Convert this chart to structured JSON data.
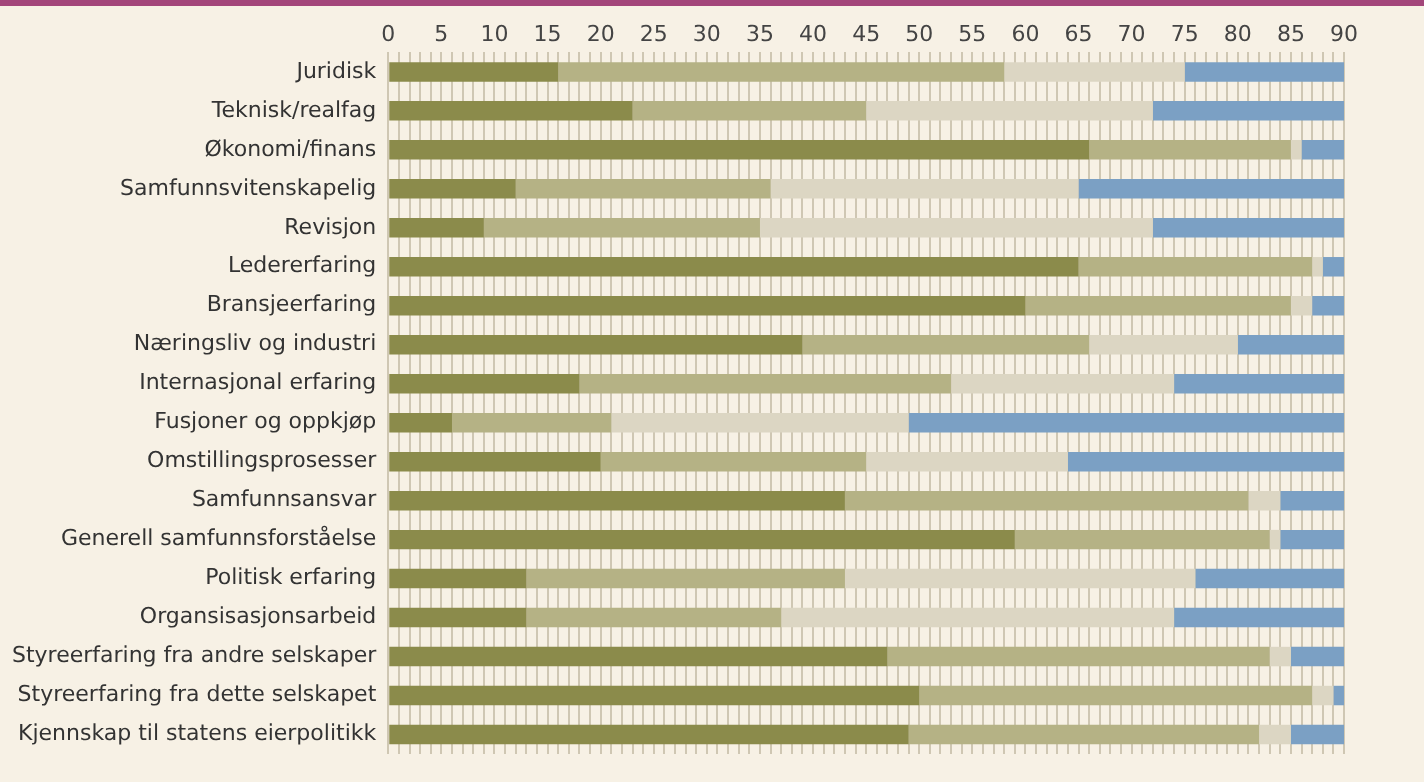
{
  "chart_data": {
    "type": "bar",
    "orientation": "horizontal",
    "stacked": true,
    "grid": "x",
    "legend": false,
    "categories": [
      "Juridisk",
      "Teknisk/realfag",
      "Økonomi/finans",
      "Samfunnsvitenskapelig",
      "Revisjon",
      "Ledererfaring",
      "Bransjeerfaring",
      "Næringsliv og industri",
      "Internasjonal erfaring",
      "Fusjoner og oppkjøp",
      "Omstillingsprosesser",
      "Samfunnsansvar",
      "Generell samfunnsforståelse",
      "Politisk erfaring",
      "Organsisasjonsarbeid",
      "Styreerfaring fra andre selskaper",
      "Styreerfaring fra dette selskapet",
      "Kjennskap til statens eierpolitikk"
    ],
    "series": [
      {
        "color": "#8b8b4b",
        "values": [
          16,
          23,
          66,
          12,
          9,
          65,
          60,
          39,
          18,
          6,
          20,
          43,
          59,
          13,
          13,
          47,
          50,
          49
        ]
      },
      {
        "color": "#b5b285",
        "values": [
          42,
          22,
          19,
          24,
          26,
          22,
          25,
          27,
          35,
          15,
          25,
          38,
          24,
          30,
          24,
          36,
          37,
          33
        ]
      },
      {
        "color": "#dcd6c3",
        "values": [
          17,
          27,
          1,
          29,
          37,
          1,
          2,
          14,
          21,
          28,
          19,
          3,
          1,
          33,
          37,
          2,
          2,
          3
        ]
      },
      {
        "color": "#7ba0c4",
        "values": [
          15,
          18,
          4,
          25,
          18,
          2,
          3,
          10,
          16,
          41,
          26,
          6,
          6,
          14,
          16,
          5,
          1,
          5
        ]
      }
    ],
    "xlim": [
      0,
      90
    ],
    "xticks": [
      0,
      {
        "value": 1,
        "label": null
      },
      {
        "value": 2,
        "label": null
      },
      {
        "value": 3,
        "label": null
      },
      {
        "value": 4,
        "label": null
      },
      5,
      {
        "value": 6,
        "label": null
      },
      {
        "value": 7,
        "label": null
      },
      {
        "value": 8,
        "label": null
      },
      {
        "value": 9,
        "label": null
      },
      10,
      {
        "value": 11,
        "label": null
      },
      {
        "value": 12,
        "label": null
      },
      {
        "value": 13,
        "label": null
      },
      {
        "value": 14,
        "label": null
      },
      15,
      {
        "value": 16,
        "label": null
      },
      {
        "value": 17,
        "label": null
      },
      {
        "value": 18,
        "label": null
      },
      {
        "value": 19,
        "label": null
      },
      20,
      {
        "value": 21,
        "label": null
      },
      {
        "value": 22,
        "label": null
      },
      {
        "value": 23,
        "label": null
      },
      {
        "value": 24,
        "label": null
      },
      25,
      {
        "value": 26,
        "label": null
      },
      {
        "value": 27,
        "label": null
      },
      {
        "value": 28,
        "label": null
      },
      {
        "value": 29,
        "label": null
      },
      30,
      {
        "value": 31,
        "label": null
      },
      {
        "value": 32,
        "label": null
      },
      {
        "value": 33,
        "label": null
      },
      {
        "value": 34,
        "label": null
      },
      35,
      {
        "value": 36,
        "label": null
      },
      {
        "value": 37,
        "label": null
      },
      {
        "value": 38,
        "label": null
      },
      {
        "value": 39,
        "label": null
      },
      40,
      {
        "value": 41,
        "label": null
      },
      {
        "value": 42,
        "label": null
      },
      {
        "value": 43,
        "label": null
      },
      {
        "value": 44,
        "label": null
      },
      45,
      {
        "value": 46,
        "label": null
      },
      {
        "value": 47,
        "label": null
      },
      {
        "value": 48,
        "label": null
      },
      {
        "value": 49,
        "label": null
      },
      50,
      {
        "value": 51,
        "label": null
      },
      {
        "value": 52,
        "label": null
      },
      {
        "value": 53,
        "label": null
      },
      {
        "value": 54,
        "label": null
      },
      55,
      {
        "value": 56,
        "label": null
      },
      {
        "value": 57,
        "label": null
      },
      {
        "value": 58,
        "label": null
      },
      {
        "value": 59,
        "label": null
      },
      60,
      {
        "value": 61,
        "label": null
      },
      {
        "value": 62,
        "label": null
      },
      {
        "value": 63,
        "label": null
      },
      {
        "value": 64,
        "label": null
      },
      65,
      {
        "value": 66,
        "label": null
      },
      {
        "value": 67,
        "label": null
      },
      {
        "value": 68,
        "label": null
      },
      {
        "value": 69,
        "label": null
      },
      70,
      {
        "value": 71,
        "label": null
      },
      {
        "value": 72,
        "label": null
      },
      {
        "value": 73,
        "label": null
      },
      {
        "value": 74,
        "label": null
      },
      75,
      {
        "value": 76,
        "label": null
      },
      {
        "value": 77,
        "label": null
      },
      {
        "value": 78,
        "label": null
      },
      {
        "value": 79,
        "label": null
      },
      80,
      {
        "value": 81,
        "label": null
      },
      {
        "value": 82,
        "label": null
      },
      {
        "value": 83,
        "label": null
      },
      {
        "value": 84,
        "label": null
      },
      85,
      {
        "value": 86,
        "label": null
      },
      {
        "value": 87,
        "label": null
      },
      {
        "value": 88,
        "label": null
      },
      {
        "value": 89,
        "label": null
      },
      90
    ]
  }
}
